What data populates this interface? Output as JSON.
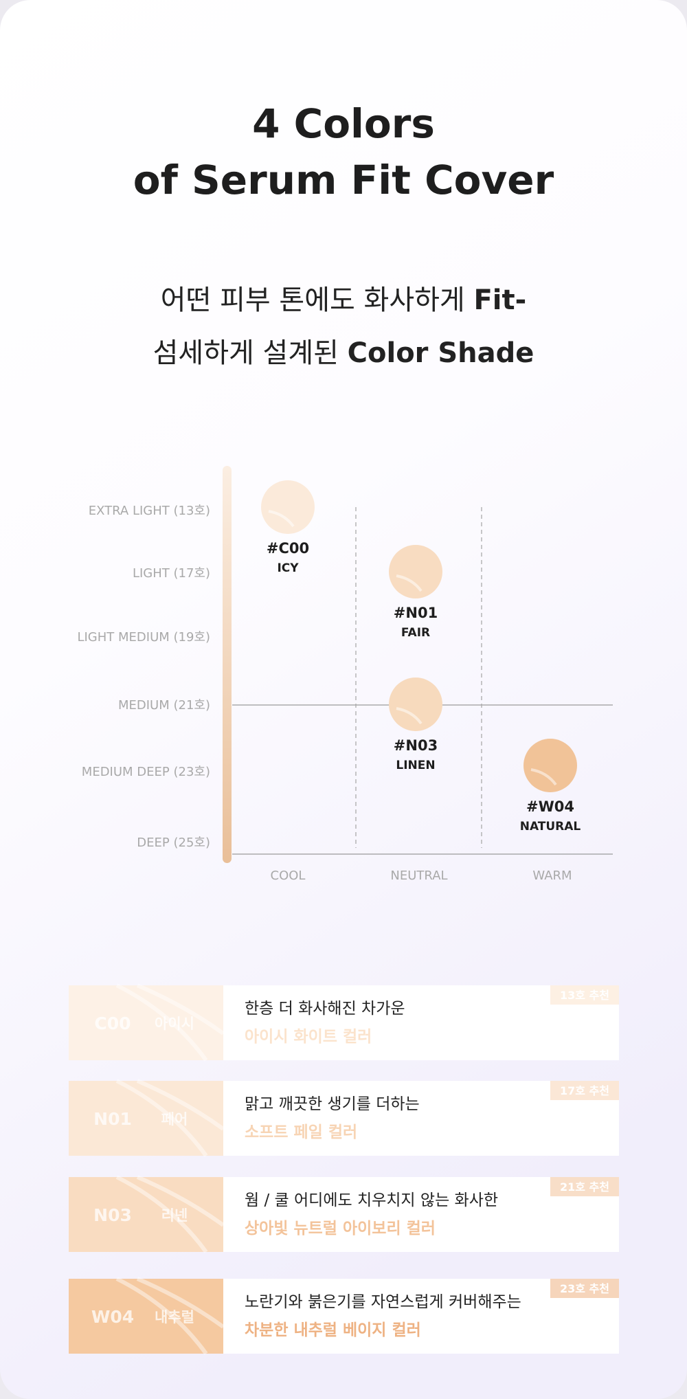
{
  "header": {
    "title": [
      "4 Colors",
      "of Serum Fit Cover"
    ],
    "subtitle": [
      {
        "text": "어떤 피부 톤에도 화사하게 ",
        "bold": "Fit-"
      },
      {
        "text": "섬세하게 설계된 ",
        "bold": "Color Shade"
      }
    ]
  },
  "shade_map": {
    "levels": [
      "EXTRA LIGHT (13호)",
      "LIGHT (17호)",
      "LIGHT MEDIUM  (19호)",
      "MEDIUM (21호)",
      "MEDIUM DEEP (23호)",
      "DEEP (25호)"
    ],
    "tones": [
      "COOL",
      "NEUTRAL",
      "WARM"
    ],
    "shades": [
      {
        "code": "#C00",
        "name": "ICY"
      },
      {
        "code": "#N01",
        "name": "FAIR"
      },
      {
        "code": "#N03",
        "name": "LINEN"
      },
      {
        "code": "#W04",
        "name": "NATURAL"
      }
    ]
  },
  "cards": [
    {
      "code": "C00",
      "name": "아이시",
      "desc": "한층 더 화사해진 차가운",
      "highlight": "아이시 화이트 컬러",
      "badge": "13호 추천"
    },
    {
      "code": "N01",
      "name": "페어",
      "desc": "맑고 깨끗한 생기를 더하는",
      "highlight": "소프트 페일 컬러",
      "badge": "17호 추천"
    },
    {
      "code": "N03",
      "name": "리넨",
      "desc": "웜 / 쿨 어디에도 치우치지 않는 화사한",
      "highlight": "상아빛 뉴트럴 아이보리 컬러",
      "badge": "21호 추천"
    },
    {
      "code": "W04",
      "name": "내추럴",
      "desc": "노란기와 붉은기를 자연스럽게 커버해주는",
      "highlight": "차분한 내추럴 베이지 컬러",
      "badge": "23호 추천"
    }
  ]
}
